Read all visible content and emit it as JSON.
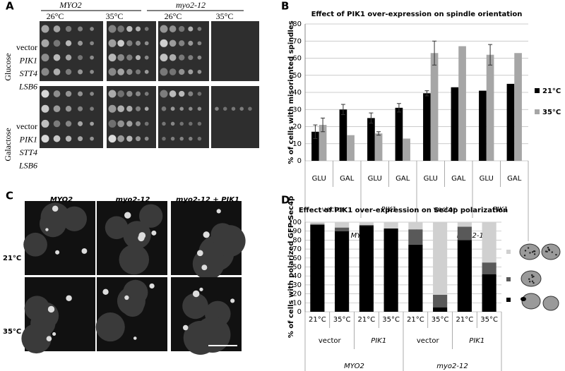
{
  "panel_labels": [
    "A",
    "B",
    "C",
    "D"
  ],
  "panel_a": {
    "strains": [
      "MYO2",
      "myo2-12"
    ],
    "temps": [
      "26°C",
      "35°C",
      "26°C",
      "35°C"
    ],
    "media": [
      "Glucose",
      "Galactose"
    ],
    "rows": [
      "vector",
      "PIK1",
      "STT4",
      "LSB6"
    ]
  },
  "panel_c": {
    "columns": [
      "MYO2",
      "myo2-12",
      "myo2-12 + PIK1"
    ],
    "rows": [
      "21°C",
      "35°C"
    ]
  },
  "chart_data": [
    {
      "type": "bar",
      "title": "Effect of PIK1 over-expression on spindle orientation",
      "y_label": "% of cells with misoriented spindles",
      "categories": [
        "GLU",
        "GAL",
        "GLU",
        "GAL",
        "GLU",
        "GAL",
        "GLU",
        "GAL"
      ],
      "groups": [
        "vector",
        "PIK1",
        "vector",
        "PIK1"
      ],
      "supergroups": [
        "MYO2",
        "myo2-12"
      ],
      "series": [
        {
          "name": "21°C",
          "color": "#000000",
          "values": [
            17,
            30,
            25,
            31,
            39.5,
            43,
            41,
            45
          ],
          "errors": [
            4,
            3,
            3,
            2.5,
            1.5,
            null,
            null,
            null
          ]
        },
        {
          "name": "35°C",
          "color": "#a6a6a6",
          "values": [
            21,
            15,
            16,
            13,
            63,
            67,
            62,
            63
          ],
          "errors": [
            4,
            null,
            1,
            null,
            7,
            null,
            6,
            null
          ]
        }
      ],
      "ylim": [
        0,
        80
      ],
      "yticks": [
        0,
        10,
        20,
        30,
        40,
        50,
        60,
        70,
        80
      ],
      "grid": true
    },
    {
      "type": "stacked_bar",
      "title": "Effect of PIK1 over-expression on Sec4p polarization",
      "y_label": "% of cells with polarized GFP-Sec4p",
      "categories": [
        "21°C",
        "35°C",
        "21°C",
        "35°C",
        "21°C",
        "35°C",
        "21°C",
        "35°C"
      ],
      "groups": [
        "vector",
        "PIK1",
        "vector",
        "PIK1"
      ],
      "supergroups": [
        "MYO2",
        "myo2-12"
      ],
      "series": [
        {
          "color": "#000000",
          "values": [
            97,
            90,
            96,
            93,
            75,
            5,
            80,
            42
          ]
        },
        {
          "color": "#595959",
          "values": [
            1,
            4,
            1,
            0,
            17,
            14,
            15,
            13
          ]
        },
        {
          "color": "#d0d0d0",
          "values": [
            2,
            6,
            3,
            7,
            8,
            81,
            5,
            45
          ]
        }
      ],
      "ylim": [
        0,
        100
      ],
      "yticks": [
        0,
        10,
        20,
        30,
        40,
        50,
        60,
        70,
        80,
        90,
        100
      ],
      "grid": true
    }
  ]
}
